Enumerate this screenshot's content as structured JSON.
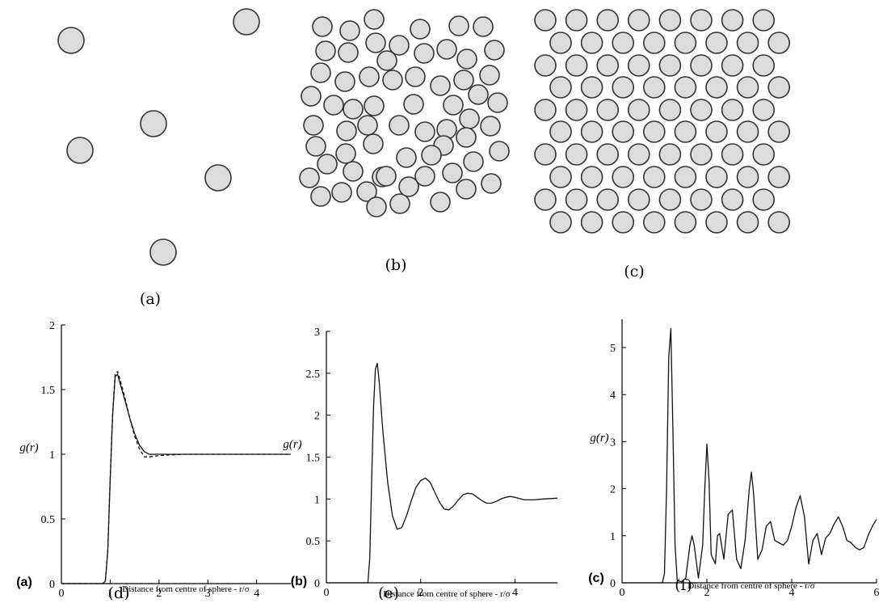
{
  "diagrams": {
    "captions": [
      "(a)",
      "(b)",
      "(c)"
    ]
  },
  "chart_data": [
    {
      "type": "line",
      "panel_tag": "(a)",
      "caption": "(d)",
      "xlabel": "Distance from centre of sphere - r/σ",
      "ylabel": "g(r)",
      "xlim": [
        0,
        4.7
      ],
      "ylim": [
        0,
        2
      ],
      "xticks": [
        "0",
        "1",
        "2",
        "3",
        "4"
      ],
      "yticks": [
        "0",
        "0.5",
        "1",
        "1.5",
        "2"
      ],
      "series": [
        {
          "style": "solid",
          "x": [
            0,
            0.85,
            0.9,
            0.95,
            1.0,
            1.05,
            1.1,
            1.15,
            1.2,
            1.3,
            1.4,
            1.5,
            1.6,
            1.7,
            1.8,
            2.0,
            2.5,
            3.0,
            3.5,
            4.0,
            4.7
          ],
          "y": [
            0,
            0,
            0.02,
            0.25,
            0.8,
            1.3,
            1.6,
            1.62,
            1.55,
            1.42,
            1.28,
            1.16,
            1.07,
            1.02,
            1.0,
            1.0,
            1.0,
            1.0,
            1.0,
            1.0,
            1.0
          ]
        },
        {
          "style": "dashed",
          "x": [
            0,
            0.85,
            0.9,
            0.95,
            1.0,
            1.05,
            1.1,
            1.15,
            1.2,
            1.3,
            1.4,
            1.5,
            1.6,
            1.7,
            1.8,
            2.0,
            2.5,
            3.0,
            3.5,
            4.0,
            4.7
          ],
          "y": [
            0,
            0,
            0.02,
            0.26,
            0.82,
            1.32,
            1.62,
            1.64,
            1.58,
            1.44,
            1.28,
            1.14,
            1.04,
            0.98,
            0.98,
            0.99,
            1.0,
            1.0,
            1.0,
            1.0,
            1.0
          ]
        }
      ]
    },
    {
      "type": "line",
      "panel_tag": "(b)",
      "caption": "(e)",
      "xlabel": "Distance from centre of sphere - r/σ",
      "ylabel": "g(r)",
      "xlim": [
        0,
        4.9
      ],
      "ylim": [
        0,
        3
      ],
      "xticks": [
        "0",
        "2",
        "4"
      ],
      "yticks": [
        "0",
        "0.5",
        "1",
        "1.5",
        "2",
        "2.5",
        "3"
      ],
      "series": [
        {
          "style": "solid",
          "x": [
            0,
            0.88,
            0.92,
            0.96,
            1.0,
            1.04,
            1.08,
            1.12,
            1.2,
            1.3,
            1.4,
            1.5,
            1.6,
            1.7,
            1.8,
            1.9,
            2.0,
            2.1,
            2.2,
            2.3,
            2.4,
            2.5,
            2.6,
            2.7,
            2.8,
            2.9,
            3.0,
            3.1,
            3.2,
            3.3,
            3.4,
            3.5,
            3.6,
            3.7,
            3.8,
            3.9,
            4.0,
            4.2,
            4.4,
            4.6,
            4.9
          ],
          "y": [
            0,
            0,
            0.3,
            1.2,
            2.1,
            2.55,
            2.62,
            2.4,
            1.8,
            1.2,
            0.8,
            0.64,
            0.66,
            0.8,
            0.98,
            1.14,
            1.22,
            1.25,
            1.2,
            1.08,
            0.96,
            0.88,
            0.87,
            0.92,
            0.99,
            1.05,
            1.07,
            1.06,
            1.02,
            0.98,
            0.95,
            0.95,
            0.97,
            1.0,
            1.02,
            1.03,
            1.02,
            0.99,
            0.99,
            1.0,
            1.01
          ]
        }
      ]
    },
    {
      "type": "line",
      "panel_tag": "(c)",
      "caption": "(f)",
      "xlabel": "Distance from centre of sphere - r/σ",
      "ylabel": "g(r)",
      "xlim": [
        0,
        6
      ],
      "ylim": [
        0,
        5.6
      ],
      "xticks": [
        "0",
        "2",
        "4",
        "6"
      ],
      "yticks": [
        "0",
        "1",
        "2",
        "3",
        "4",
        "5"
      ],
      "series": [
        {
          "style": "solid",
          "x": [
            0,
            0.95,
            1.0,
            1.05,
            1.1,
            1.15,
            1.2,
            1.25,
            1.3,
            1.4,
            1.5,
            1.6,
            1.65,
            1.7,
            1.8,
            1.9,
            1.95,
            2.0,
            2.05,
            2.1,
            2.2,
            2.25,
            2.3,
            2.4,
            2.5,
            2.6,
            2.7,
            2.8,
            2.9,
            3.0,
            3.05,
            3.1,
            3.2,
            3.3,
            3.4,
            3.5,
            3.6,
            3.7,
            3.8,
            3.9,
            4.0,
            4.1,
            4.2,
            4.3,
            4.4,
            4.5,
            4.6,
            4.7,
            4.8,
            4.9,
            5.0,
            5.1,
            5.2,
            5.3,
            5.4,
            5.5,
            5.6,
            5.7,
            5.8,
            5.9,
            6.0
          ],
          "y": [
            0,
            0,
            0.2,
            2.0,
            4.8,
            5.4,
            3.2,
            0.8,
            0.05,
            0.02,
            0.1,
            0.8,
            1.0,
            0.8,
            0.1,
            0.8,
            2.0,
            2.95,
            2.2,
            0.6,
            0.4,
            1.0,
            1.05,
            0.5,
            1.45,
            1.55,
            0.5,
            0.3,
            0.9,
            2.0,
            2.35,
            1.9,
            0.5,
            0.7,
            1.2,
            1.3,
            0.9,
            0.85,
            0.8,
            0.9,
            1.2,
            1.6,
            1.85,
            1.4,
            0.4,
            0.9,
            1.05,
            0.6,
            0.95,
            1.05,
            1.25,
            1.4,
            1.2,
            0.9,
            0.85,
            0.75,
            0.7,
            0.75,
            1.0,
            1.2,
            1.35
          ]
        }
      ]
    }
  ]
}
